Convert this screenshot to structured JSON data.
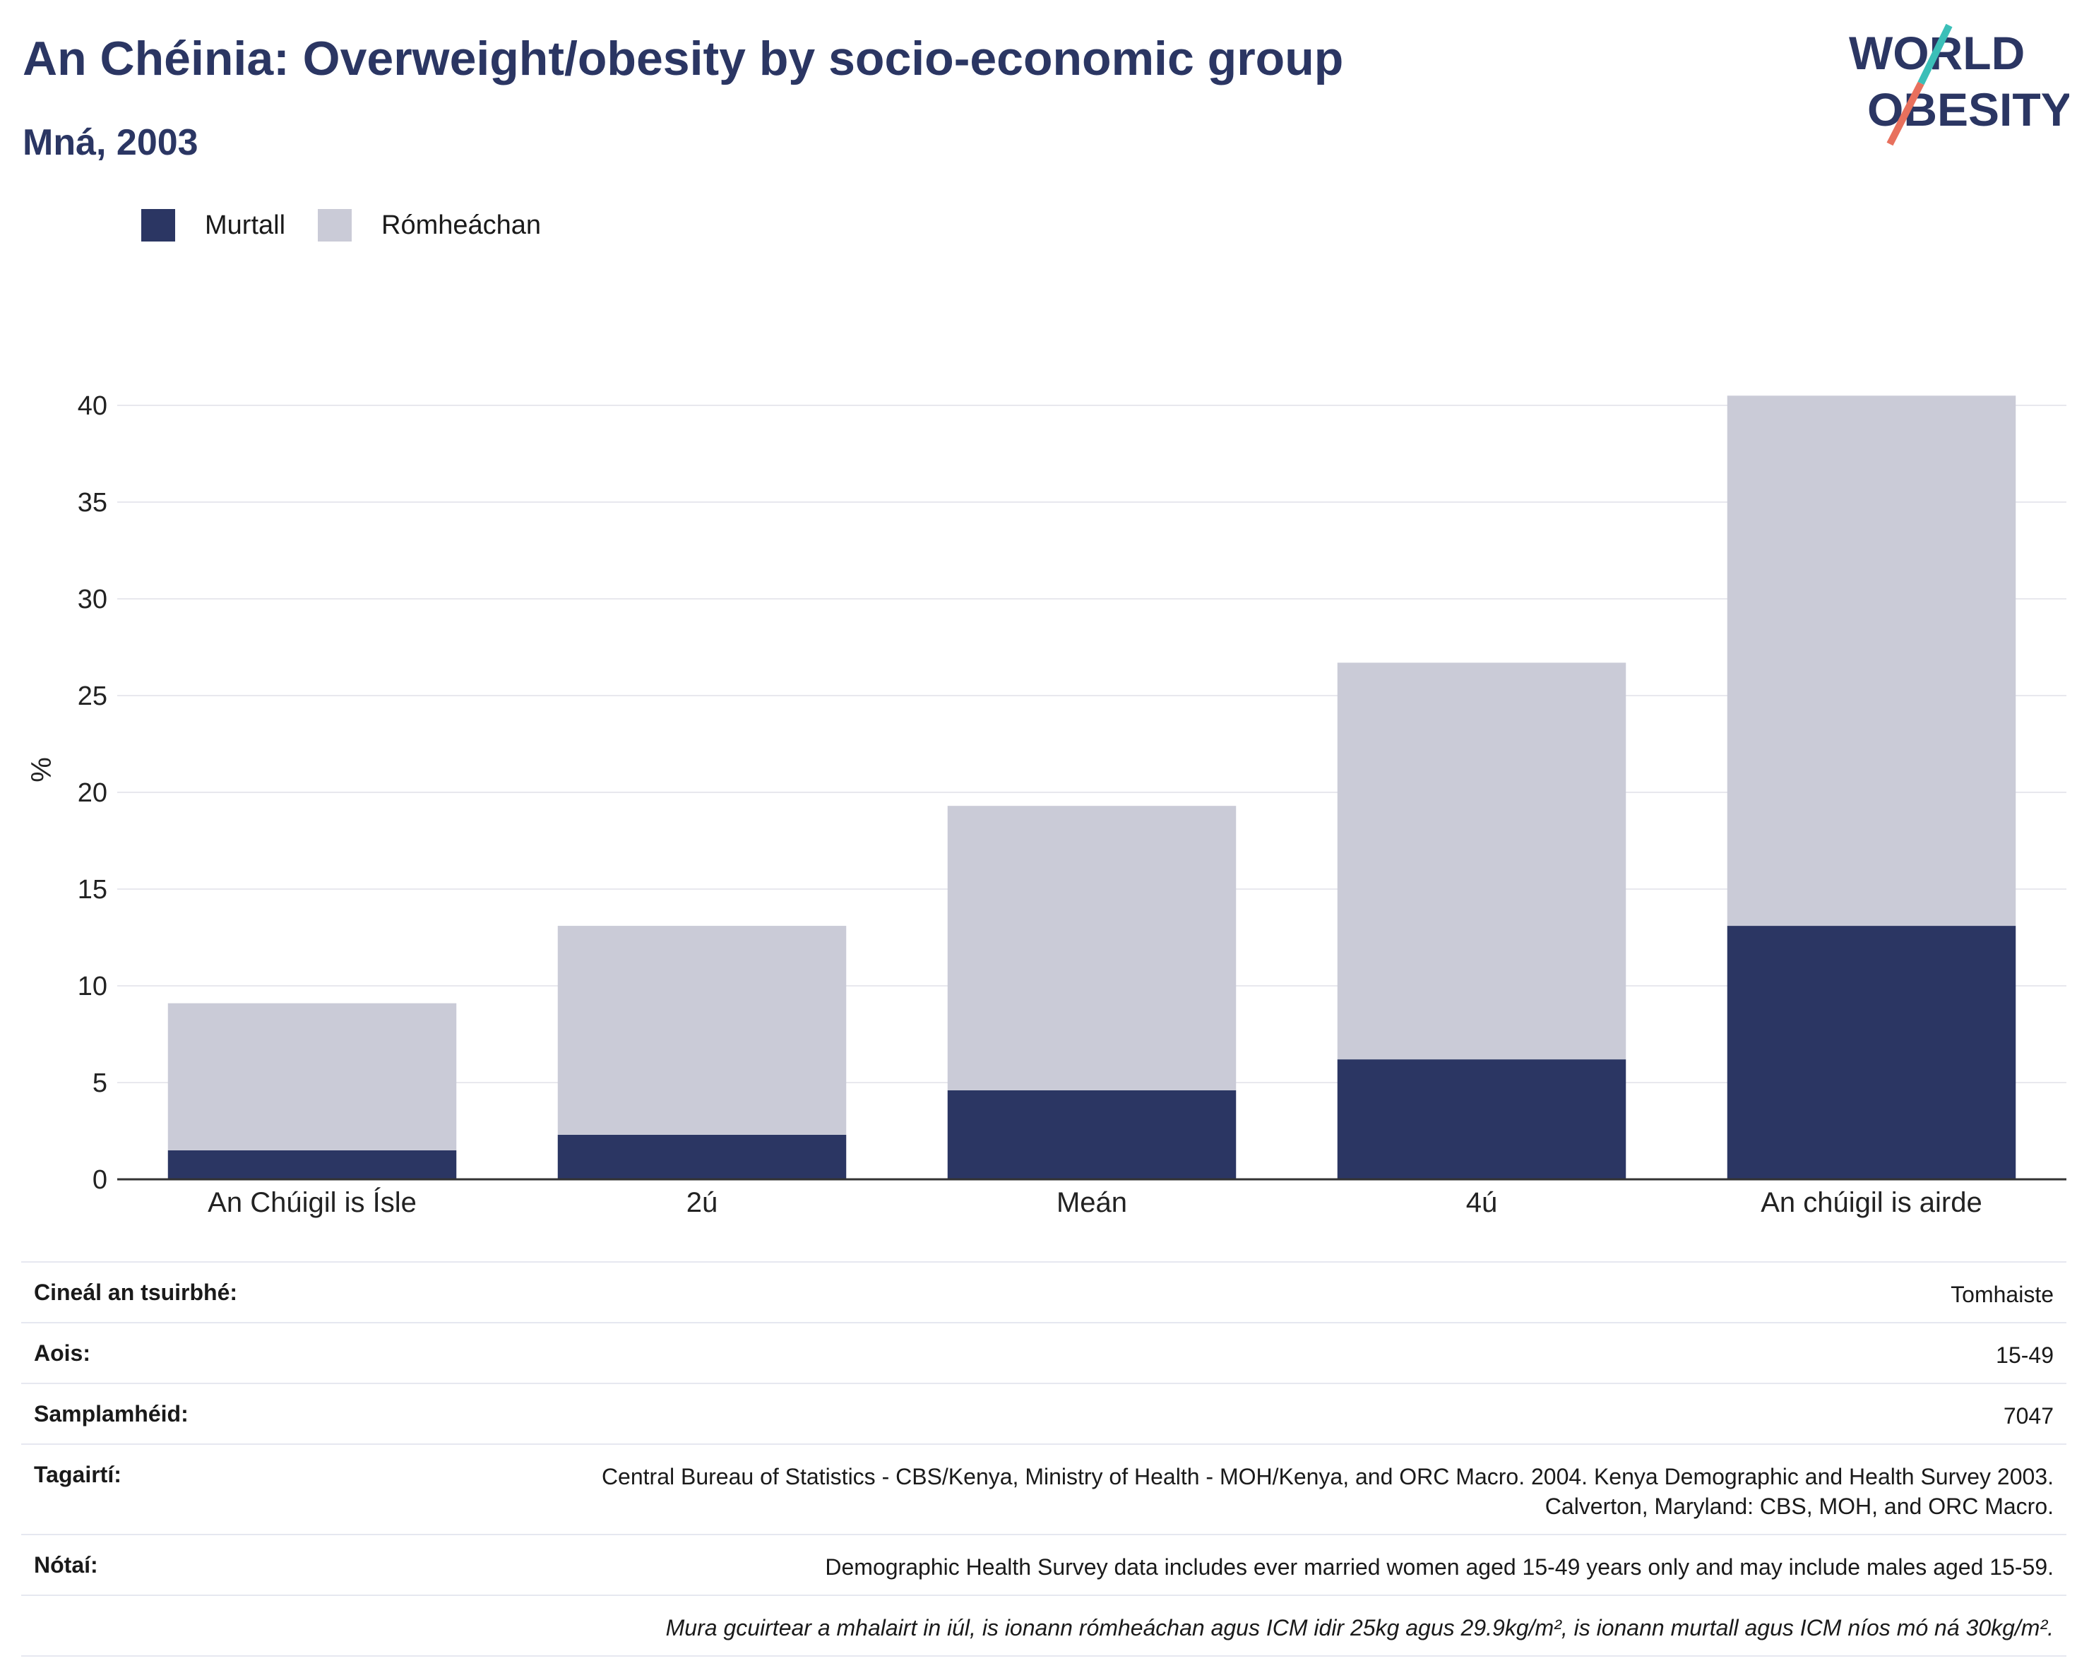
{
  "header": {
    "title": "An Chéinia: Overweight/obesity by socio-economic group",
    "subtitle": "Mná, 2003"
  },
  "logo": {
    "line1": "WORLD",
    "line2": "OBESITY",
    "colors": {
      "text": "#2b3663",
      "slash_teal": "#3bbfb8",
      "slash_coral": "#e8705d"
    }
  },
  "colors": {
    "obese": "#2b3663",
    "overweight": "#cacbd7",
    "grid": "#e8e8ee",
    "axis": "#333333"
  },
  "chart_data": {
    "type": "bar",
    "stacked": true,
    "categories": [
      "An Chúigil is Ísle",
      "2ú",
      "Meán",
      "4ú",
      "An chúigil is airde"
    ],
    "series": [
      {
        "name": "Murtall",
        "values": [
          1.5,
          2.3,
          4.6,
          6.2,
          13.1
        ]
      },
      {
        "name": "Rómheáchan",
        "values": [
          7.6,
          10.8,
          14.7,
          20.5,
          27.4
        ]
      }
    ],
    "ylabel": "%",
    "xlabel": "",
    "ylim": [
      0,
      42
    ],
    "yticks": [
      0,
      5,
      10,
      15,
      20,
      25,
      30,
      35,
      40
    ],
    "grid": true,
    "legend_position": "top-left"
  },
  "info": [
    {
      "key": "Cineál an tsuirbhé:",
      "value": "Tomhaiste"
    },
    {
      "key": "Aois:",
      "value": "15-49"
    },
    {
      "key": "Samplamhéid:",
      "value": "7047"
    },
    {
      "key": "Tagairtí:",
      "value": "Central Bureau of Statistics - CBS/Kenya, Ministry of Health - MOH/Kenya, and ORC Macro. 2004. Kenya Demographic and Health Survey 2003. Calverton, Maryland: CBS, MOH, and ORC Macro."
    },
    {
      "key": "Nótaí:",
      "value": "Demographic Health Survey data includes ever married women aged 15-49 years only and may include males aged 15-59."
    },
    {
      "key": "",
      "value": "Mura gcuirtear a mhalairt in iúl, is ionann rómheáchan agus ICM idir 25kg agus 29.9kg/m², is ionann murtall agus ICM níos mó ná 30kg/m²."
    }
  ]
}
